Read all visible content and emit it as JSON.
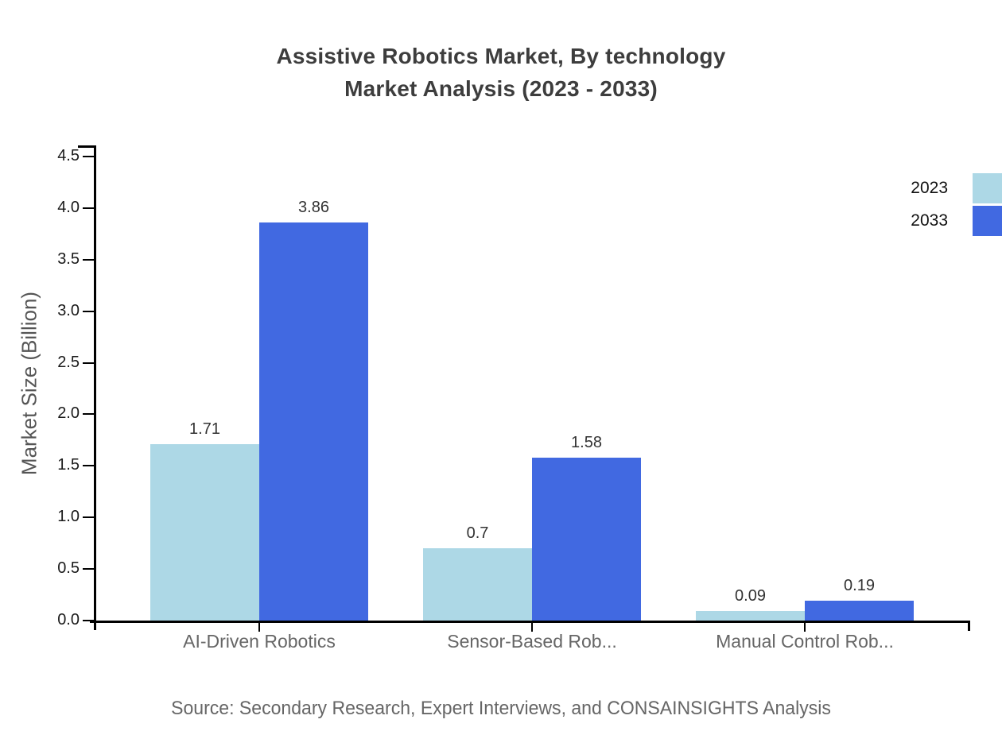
{
  "chart_data": {
    "type": "bar",
    "title": "Assistive Robotics Market, By technology",
    "subtitle": "Market Analysis (2023 - 2033)",
    "ylabel": "Market Size (Billion)",
    "xlabel": "",
    "categories": [
      "AI-Driven Robotics",
      "Sensor-Based Rob...",
      "Manual Control Rob..."
    ],
    "series": [
      {
        "name": "2023",
        "color": "#add8e6",
        "values": [
          1.71,
          0.7,
          0.09
        ],
        "value_labels": [
          "1.71",
          "0.7",
          "0.09"
        ]
      },
      {
        "name": "2033",
        "color": "#4169e1",
        "values": [
          3.86,
          1.58,
          0.19
        ],
        "value_labels": [
          "3.86",
          "1.58",
          "0.19"
        ]
      }
    ],
    "ylim": [
      0,
      4.5
    ],
    "yticks": [
      "0.0",
      "0.5",
      "1.0",
      "1.5",
      "2.0",
      "2.5",
      "3.0",
      "3.5",
      "4.0",
      "4.5"
    ],
    "legend_position": "top-right",
    "grid": false
  },
  "source": {
    "text": "Source: Secondary Research, Expert Interviews, and CONSAINSIGHTS Analysis"
  },
  "colors": {
    "series_2023": "#add8e6",
    "series_2033": "#4169e1",
    "axis": "#000000",
    "title": "#3d3d3d",
    "category_label": "#666666",
    "value_label": "#333333",
    "source_text": "#666666"
  }
}
